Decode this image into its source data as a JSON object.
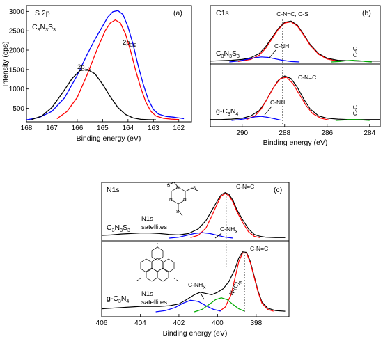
{
  "chart_data": [
    {
      "type": "line",
      "panel": "(a)",
      "title": "S 2p",
      "subtitle": "C3N3S3",
      "xlabel": "Binding energy (eV)",
      "ylabel": "Intensity (cps)",
      "xlim": [
        168,
        161.5
      ],
      "xdir": "reversed",
      "ylim": [
        150,
        3150
      ],
      "xticks": [
        "168",
        "167",
        "166",
        "165",
        "164",
        "163",
        "162"
      ],
      "yticks": [
        "500",
        "1000",
        "1500",
        "2000",
        "2500",
        "3000"
      ],
      "annotations": {
        "p12": "2p1/2",
        "p32": "2p3/2"
      },
      "series": [
        {
          "color": "#0000ff",
          "x": [
            168,
            167.5,
            167,
            166.5,
            166,
            165.6,
            165.3,
            165,
            164.8,
            164.6,
            164.4,
            164.2,
            164,
            163.8,
            163.6,
            163.4,
            163.2,
            163,
            162.8,
            162.5,
            162.2,
            162,
            161.8
          ],
          "y": [
            200,
            260,
            420,
            770,
            1350,
            1900,
            2280,
            2620,
            2850,
            2990,
            3020,
            2920,
            2600,
            2150,
            1600,
            1120,
            720,
            470,
            350,
            290,
            270,
            250,
            230
          ]
        },
        {
          "color": "#ff0000",
          "x": [
            166.8,
            166.4,
            166,
            165.6,
            165.2,
            164.9,
            164.7,
            164.5,
            164.3,
            164.1,
            163.9,
            163.7,
            163.5,
            163.3,
            163.1,
            162.9,
            162.6,
            162.3,
            162
          ],
          "y": [
            230,
            420,
            780,
            1380,
            2050,
            2500,
            2700,
            2780,
            2700,
            2420,
            1980,
            1480,
            1030,
            660,
            420,
            300,
            240,
            220,
            210
          ]
        },
        {
          "color": "#000000",
          "x": [
            167.8,
            167.4,
            167,
            166.6,
            166.2,
            165.9,
            165.6,
            165.3,
            165,
            164.7,
            164.4,
            164.1,
            163.8,
            163.5,
            163.2,
            162.9
          ],
          "y": [
            210,
            300,
            520,
            880,
            1270,
            1470,
            1500,
            1390,
            1120,
            800,
            520,
            340,
            250,
            215,
            205,
            200
          ]
        }
      ]
    },
    {
      "type": "line",
      "panel": "(b)",
      "title": "C1s",
      "xlabel": "Binding energy (eV)",
      "xlim": [
        291.5,
        283.5
      ],
      "xdir": "reversed",
      "xticks": [
        "290",
        "288",
        "286",
        "284"
      ],
      "ref_line": 288.1,
      "upper": {
        "sample": "C3N3S3",
        "annotations": {
          "main": "C-N=C, C-S",
          "sub": "C-NH",
          "cc": "C-C"
        },
        "series": [
          {
            "color": "#000000",
            "x": [
              291.5,
              291,
              290.5,
              290,
              289.6,
              289.2,
              288.9,
              288.6,
              288.3,
              288,
              287.7,
              287.4,
              287.1,
              286.8,
              286.4,
              286,
              285.5,
              285,
              284.5,
              284,
              283.5
            ],
            "y": [
              0.02,
              0.03,
              0.04,
              0.06,
              0.1,
              0.2,
              0.36,
              0.58,
              0.8,
              0.95,
              0.98,
              0.88,
              0.66,
              0.42,
              0.2,
              0.09,
              0.04,
              0.03,
              0.02,
              0.02,
              0.02
            ]
          },
          {
            "color": "#ff0000",
            "x": [
              290.2,
              289.6,
              289.2,
              288.9,
              288.6,
              288.3,
              288,
              287.7,
              287.4,
              287.1,
              286.8,
              286.4,
              286,
              285.5
            ],
            "y": [
              0.01,
              0.06,
              0.16,
              0.32,
              0.55,
              0.78,
              0.93,
              0.96,
              0.86,
              0.64,
              0.4,
              0.18,
              0.07,
              0.02
            ]
          },
          {
            "color": "#0000ff",
            "x": [
              290.6,
              290.2,
              289.8,
              289.4,
              289.1,
              288.8,
              288.5,
              288.1,
              287.7,
              287.3
            ],
            "y": [
              0.0,
              0.02,
              0.06,
              0.1,
              0.12,
              0.11,
              0.08,
              0.04,
              0.01,
              0.0
            ]
          },
          {
            "color": "#00aa00",
            "x": [
              285.8,
              285.4,
              285.1,
              284.8,
              284.5,
              284.2,
              283.9
            ],
            "y": [
              0.0,
              0.01,
              0.03,
              0.04,
              0.03,
              0.01,
              0.0
            ]
          }
        ]
      },
      "lower": {
        "sample": "g-C3N4",
        "annotations": {
          "main": "C-N=C",
          "sub": "C-NH",
          "cc": "C-C"
        },
        "series": [
          {
            "color": "#000000",
            "x": [
              291.5,
              291,
              290.5,
              290,
              289.6,
              289.2,
              288.9,
              288.6,
              288.3,
              288,
              287.7,
              287.4,
              287.1,
              286.8,
              286.4,
              286,
              285.5,
              285,
              284.5,
              284,
              283.5
            ],
            "y": [
              0.02,
              0.02,
              0.03,
              0.05,
              0.1,
              0.22,
              0.42,
              0.68,
              0.9,
              1.0,
              0.94,
              0.74,
              0.48,
              0.26,
              0.1,
              0.05,
              0.03,
              0.02,
              0.02,
              0.02,
              0.02
            ]
          },
          {
            "color": "#ff0000",
            "x": [
              289.8,
              289.4,
              289.1,
              288.8,
              288.5,
              288.2,
              287.9,
              287.6,
              287.3,
              287,
              286.7,
              286.3,
              285.9
            ],
            "y": [
              0.02,
              0.1,
              0.26,
              0.5,
              0.76,
              0.94,
              0.97,
              0.82,
              0.58,
              0.34,
              0.16,
              0.05,
              0.01
            ]
          },
          {
            "color": "#0000ff",
            "x": [
              290.5,
              290.1,
              289.7,
              289.4,
              289.1,
              288.8,
              288.5,
              288.2
            ],
            "y": [
              0.0,
              0.02,
              0.05,
              0.08,
              0.09,
              0.07,
              0.04,
              0.01
            ]
          },
          {
            "color": "#00aa00",
            "x": [
              285.6,
              285.2,
              284.9,
              284.6,
              284.3,
              284
            ],
            "y": [
              0.0,
              0.01,
              0.02,
              0.02,
              0.01,
              0.0
            ]
          }
        ]
      }
    },
    {
      "type": "line",
      "panel": "(c)",
      "title": "N1s",
      "xlabel": "Binding energy (eV)",
      "xlim": [
        406,
        396.3
      ],
      "xdir": "reversed",
      "xticks": [
        "406",
        "404",
        "402",
        "400",
        "398"
      ],
      "ref_lines": [
        399.55,
        398.6
      ],
      "upper": {
        "sample": "C3N3S3",
        "satellites": "N1s satellites",
        "annotations": {
          "main": "C-N=C",
          "sub": "C-NHx"
        },
        "series": [
          {
            "color": "#000000",
            "x": [
              406,
              405.5,
              405,
              404.5,
              404,
              403.5,
              403,
              402.5,
              402,
              401.5,
              401,
              400.6,
              400.3,
              400,
              399.8,
              399.6,
              399.4,
              399.2,
              399,
              398.7,
              398.4,
              398.1,
              397.8,
              397.5,
              397,
              396.5
            ],
            "y": [
              0.06,
              0.07,
              0.09,
              0.1,
              0.11,
              0.11,
              0.1,
              0.08,
              0.07,
              0.1,
              0.2,
              0.38,
              0.6,
              0.82,
              0.95,
              0.99,
              0.95,
              0.82,
              0.62,
              0.4,
              0.2,
              0.08,
              0.04,
              0.02,
              0.01,
              0.01
            ]
          },
          {
            "color": "#ff0000",
            "x": [
              401.4,
              401,
              400.6,
              400.3,
              400,
              399.8,
              399.6,
              399.4,
              399.2,
              399,
              398.7,
              398.4,
              398.1,
              397.8
            ],
            "y": [
              0.01,
              0.06,
              0.22,
              0.48,
              0.76,
              0.92,
              0.97,
              0.92,
              0.78,
              0.58,
              0.34,
              0.14,
              0.04,
              0.01
            ]
          },
          {
            "color": "#0000ff",
            "x": [
              402.5,
              402,
              401.6,
              401.2,
              400.8,
              400.4,
              400,
              399.6,
              399.2
            ],
            "y": [
              0.0,
              0.02,
              0.06,
              0.1,
              0.12,
              0.1,
              0.06,
              0.02,
              0.0
            ]
          }
        ]
      },
      "lower": {
        "sample": "g-C3N4",
        "satellites": "N1s satellites",
        "annotations": {
          "main": "C-N=C",
          "sub": "C-NHx",
          "ncc": "N-(C)3"
        },
        "series": [
          {
            "color": "#000000",
            "x": [
              406,
              405.5,
              405,
              404.5,
              404,
              403.5,
              403,
              402.5,
              402,
              401.6,
              401.2,
              400.9,
              400.6,
              400.3,
              400,
              399.7,
              399.4,
              399.1,
              398.9,
              398.7,
              398.5,
              398.3,
              398.1,
              397.9,
              397.7,
              397.4,
              397,
              396.5
            ],
            "y": [
              0.05,
              0.06,
              0.07,
              0.08,
              0.09,
              0.09,
              0.09,
              0.1,
              0.13,
              0.2,
              0.28,
              0.32,
              0.3,
              0.28,
              0.32,
              0.38,
              0.5,
              0.7,
              0.88,
              0.98,
              0.97,
              0.82,
              0.58,
              0.34,
              0.16,
              0.06,
              0.02,
              0.01
            ]
          },
          {
            "color": "#ff0000",
            "x": [
              399.9,
              399.6,
              399.3,
              399.1,
              398.9,
              398.7,
              398.5,
              398.3,
              398.1,
              397.9,
              397.7,
              397.4,
              397.1
            ],
            "y": [
              0.01,
              0.08,
              0.28,
              0.55,
              0.82,
              0.96,
              0.96,
              0.8,
              0.56,
              0.32,
              0.14,
              0.04,
              0.01
            ]
          },
          {
            "color": "#0000ff",
            "x": [
              403.2,
              402.7,
              402.2,
              401.8,
              401.4,
              401,
              400.6,
              400.2,
              399.8
            ],
            "y": [
              0.0,
              0.02,
              0.07,
              0.14,
              0.19,
              0.17,
              0.1,
              0.04,
              0.01
            ]
          },
          {
            "color": "#00aa00",
            "x": [
              401.2,
              400.8,
              400.4,
              400.1,
              399.8,
              399.5,
              399.2,
              398.9,
              398.6
            ],
            "y": [
              0.0,
              0.04,
              0.13,
              0.2,
              0.23,
              0.2,
              0.12,
              0.05,
              0.01
            ]
          }
        ]
      }
    }
  ]
}
